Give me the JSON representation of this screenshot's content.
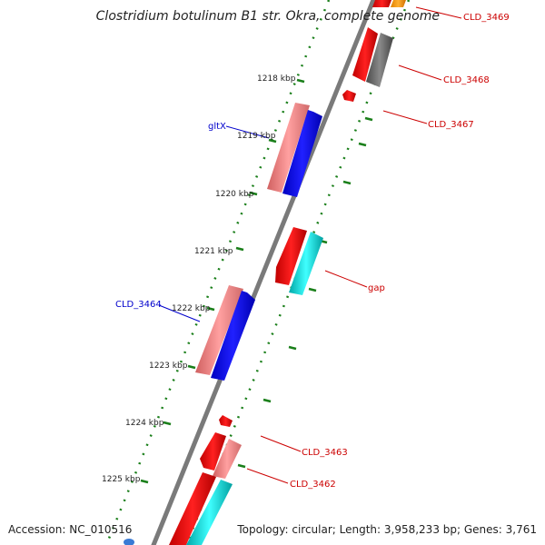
{
  "title": "Clostridium botulinum B1 str. Okra, complete genome",
  "accession": "Accession: NC_010516",
  "topology": "Topology: circular; Length: 3,958,233 bp; Genes: 3,761",
  "kbp_labels": [
    "1218 kbp",
    "1219 kbp",
    "1220 kbp",
    "1221 kbp",
    "1222 kbp",
    "1223 kbp",
    "1224 kbp",
    "1225 kbp"
  ],
  "gene_labels": {
    "cld3469": "CLD_3469",
    "cld3468": "CLD_3468",
    "cld3467": "CLD_3467",
    "gltx": "gltX",
    "gap": "gap",
    "cld3464": "CLD_3464",
    "cld3463": "CLD_3463",
    "cld3462": "CLD_3462"
  },
  "colors": {
    "backbone": "#808080",
    "dotted_track": "#1a7f1a",
    "label_red": "#cc0000",
    "label_blue": "#0000cc",
    "gene_red": "#ff0000",
    "gene_pink": "#f08080",
    "gene_blue": "#0000ff",
    "gene_cyan": "#00cccc",
    "gene_gray": "#666666",
    "gene_orange": "#ff9900"
  }
}
